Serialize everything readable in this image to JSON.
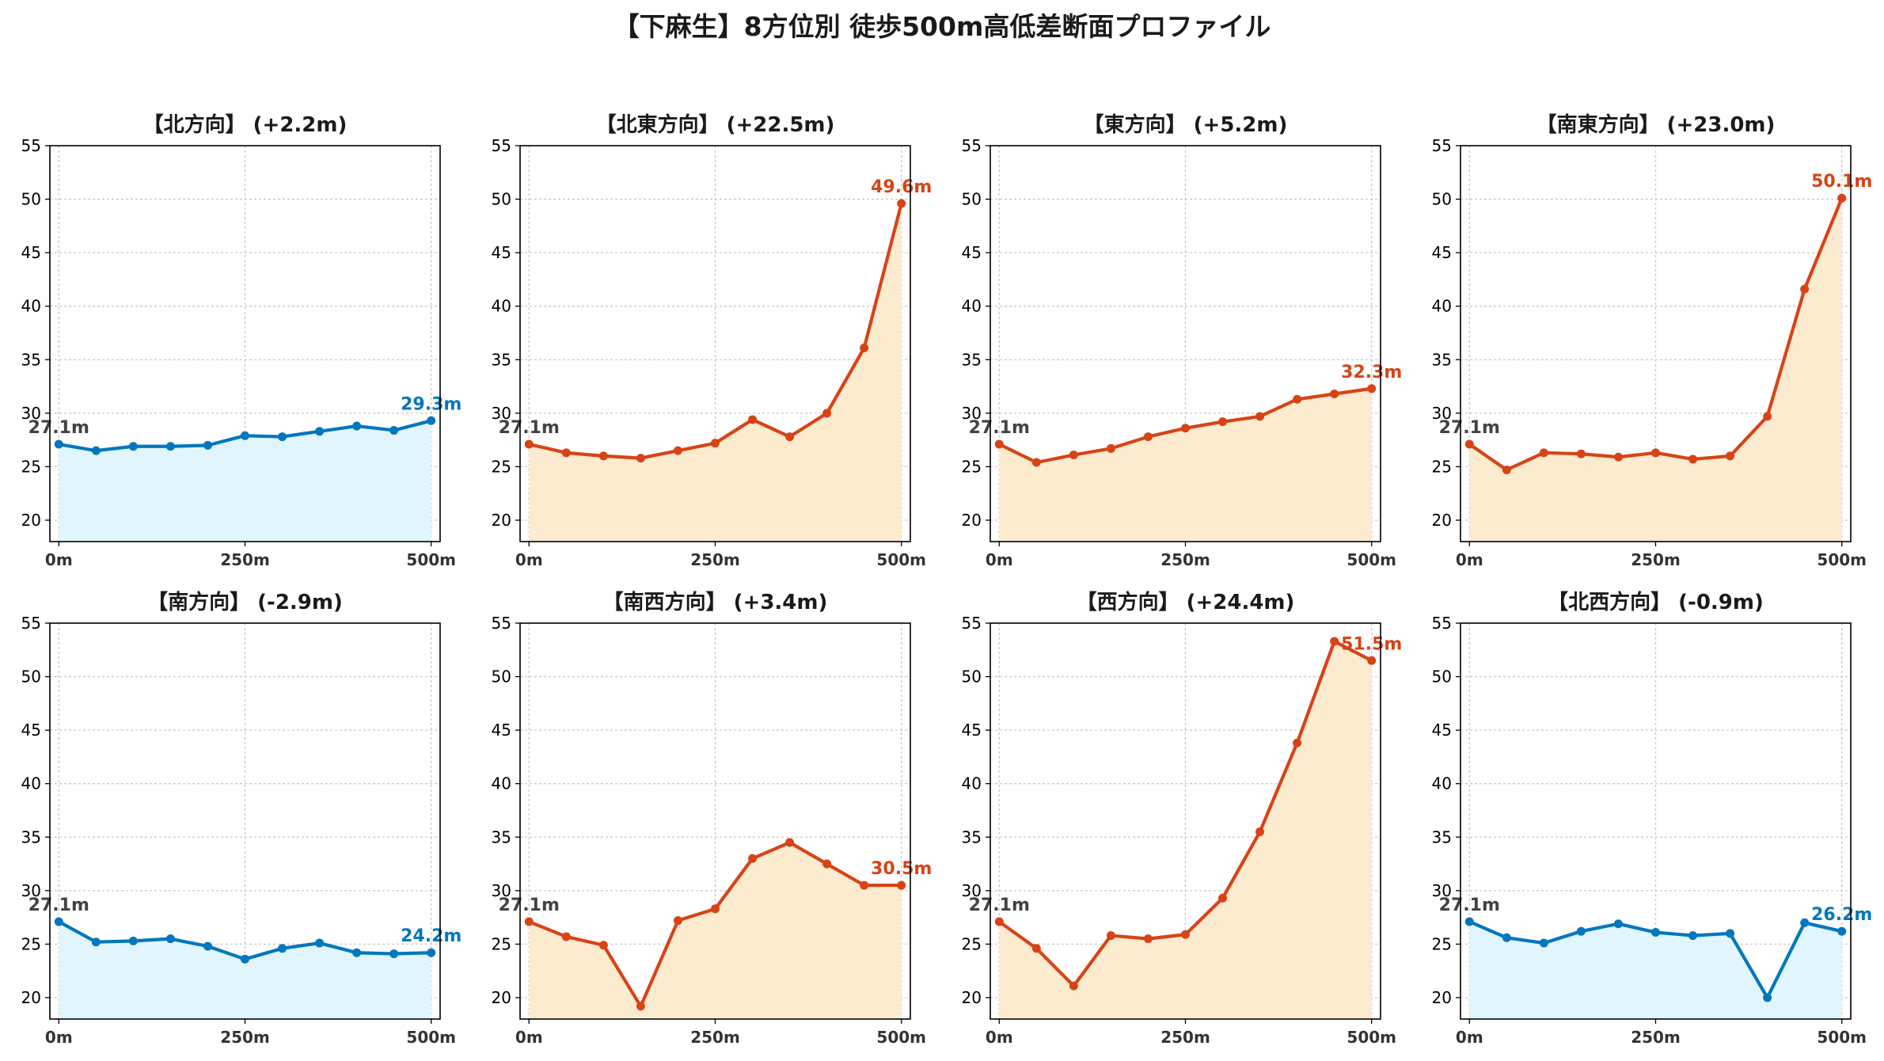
{
  "figure": {
    "title": "【下麻生】8方位別 徒歩500m高低差断面プロファイル"
  },
  "colors": {
    "uphill": "#d84315",
    "uphill_fill": "#fdebd0",
    "downhill": "#0277bd",
    "downhill_fill": "#e1f5fe",
    "start_label": "#424242"
  },
  "chart_data": [
    {
      "type": "area",
      "title": "【北方向】 (+2.2m)",
      "trend": "downhill",
      "xticklabels": [
        "0m",
        "250m",
        "500m"
      ],
      "x": [
        0,
        50,
        100,
        150,
        200,
        250,
        300,
        350,
        400,
        450,
        500
      ],
      "values": [
        27.1,
        26.5,
        26.9,
        26.9,
        27.0,
        27.9,
        27.8,
        28.3,
        28.8,
        28.4,
        29.3
      ],
      "start_label": "27.1m",
      "end_label": "29.3m",
      "ylim": [
        18,
        55
      ],
      "yticks": [
        20,
        25,
        30,
        35,
        40,
        45,
        50,
        55
      ],
      "xlim": [
        -12,
        512
      ],
      "grid": true
    },
    {
      "type": "area",
      "title": "【北東方向】 (+22.5m)",
      "trend": "uphill",
      "xticklabels": [
        "0m",
        "250m",
        "500m"
      ],
      "x": [
        0,
        50,
        100,
        150,
        200,
        250,
        300,
        350,
        400,
        450,
        500
      ],
      "values": [
        27.1,
        26.3,
        26.0,
        25.8,
        26.5,
        27.2,
        29.4,
        27.8,
        30.0,
        36.1,
        49.6
      ],
      "start_label": "27.1m",
      "end_label": "49.6m",
      "ylim": [
        18,
        55
      ],
      "yticks": [
        20,
        25,
        30,
        35,
        40,
        45,
        50,
        55
      ],
      "xlim": [
        -12,
        512
      ],
      "grid": true
    },
    {
      "type": "area",
      "title": "【東方向】 (+5.2m)",
      "trend": "uphill",
      "xticklabels": [
        "0m",
        "250m",
        "500m"
      ],
      "x": [
        0,
        50,
        100,
        150,
        200,
        250,
        300,
        350,
        400,
        450,
        500
      ],
      "values": [
        27.1,
        25.4,
        26.1,
        26.7,
        27.8,
        28.6,
        29.2,
        29.7,
        31.3,
        31.8,
        32.3
      ],
      "start_label": "27.1m",
      "end_label": "32.3m",
      "ylim": [
        18,
        55
      ],
      "yticks": [
        20,
        25,
        30,
        35,
        40,
        45,
        50,
        55
      ],
      "xlim": [
        -12,
        512
      ],
      "grid": true
    },
    {
      "type": "area",
      "title": "【南東方向】 (+23.0m)",
      "trend": "uphill",
      "xticklabels": [
        "0m",
        "250m",
        "500m"
      ],
      "x": [
        0,
        50,
        100,
        150,
        200,
        250,
        300,
        350,
        400,
        450,
        500
      ],
      "values": [
        27.1,
        24.7,
        26.3,
        26.2,
        25.9,
        26.3,
        25.7,
        26.0,
        29.7,
        41.6,
        50.1
      ],
      "start_label": "27.1m",
      "end_label": "50.1m",
      "ylim": [
        18,
        55
      ],
      "yticks": [
        20,
        25,
        30,
        35,
        40,
        45,
        50,
        55
      ],
      "xlim": [
        -12,
        512
      ],
      "grid": true
    },
    {
      "type": "area",
      "title": "【南方向】 (-2.9m)",
      "trend": "downhill",
      "xticklabels": [
        "0m",
        "250m",
        "500m"
      ],
      "x": [
        0,
        50,
        100,
        150,
        200,
        250,
        300,
        350,
        400,
        450,
        500
      ],
      "values": [
        27.1,
        25.2,
        25.3,
        25.5,
        24.8,
        23.6,
        24.6,
        25.1,
        24.2,
        24.1,
        24.2
      ],
      "start_label": "27.1m",
      "end_label": "24.2m",
      "ylim": [
        18,
        55
      ],
      "yticks": [
        20,
        25,
        30,
        35,
        40,
        45,
        50,
        55
      ],
      "xlim": [
        -12,
        512
      ],
      "grid": true
    },
    {
      "type": "area",
      "title": "【南西方向】 (+3.4m)",
      "trend": "uphill",
      "xticklabels": [
        "0m",
        "250m",
        "500m"
      ],
      "x": [
        0,
        50,
        100,
        150,
        200,
        250,
        300,
        350,
        400,
        450,
        500
      ],
      "values": [
        27.1,
        25.7,
        24.9,
        19.2,
        27.2,
        28.3,
        33.0,
        34.5,
        32.5,
        30.5,
        30.5
      ],
      "start_label": "27.1m",
      "end_label": "30.5m",
      "ylim": [
        18,
        55
      ],
      "yticks": [
        20,
        25,
        30,
        35,
        40,
        45,
        50,
        55
      ],
      "xlim": [
        -12,
        512
      ],
      "grid": true
    },
    {
      "type": "area",
      "title": "【西方向】 (+24.4m)",
      "trend": "uphill",
      "xticklabels": [
        "0m",
        "250m",
        "500m"
      ],
      "x": [
        0,
        50,
        100,
        150,
        200,
        250,
        300,
        350,
        400,
        450,
        500
      ],
      "values": [
        27.1,
        24.6,
        21.1,
        25.8,
        25.5,
        25.9,
        29.3,
        35.5,
        43.8,
        53.3,
        51.5
      ],
      "start_label": "27.1m",
      "end_label": "51.5m",
      "ylim": [
        18,
        55
      ],
      "yticks": [
        20,
        25,
        30,
        35,
        40,
        45,
        50,
        55
      ],
      "xlim": [
        -12,
        512
      ],
      "grid": true
    },
    {
      "type": "area",
      "title": "【北西方向】 (-0.9m)",
      "trend": "downhill",
      "xticklabels": [
        "0m",
        "250m",
        "500m"
      ],
      "x": [
        0,
        50,
        100,
        150,
        200,
        250,
        300,
        350,
        400,
        450,
        500
      ],
      "values": [
        27.1,
        25.6,
        25.1,
        26.2,
        26.9,
        26.1,
        25.8,
        26.0,
        20.0,
        27.0,
        26.2
      ],
      "start_label": "27.1m",
      "end_label": "26.2m",
      "ylim": [
        18,
        55
      ],
      "yticks": [
        20,
        25,
        30,
        35,
        40,
        45,
        50,
        55
      ],
      "xlim": [
        -12,
        512
      ],
      "grid": true
    }
  ]
}
